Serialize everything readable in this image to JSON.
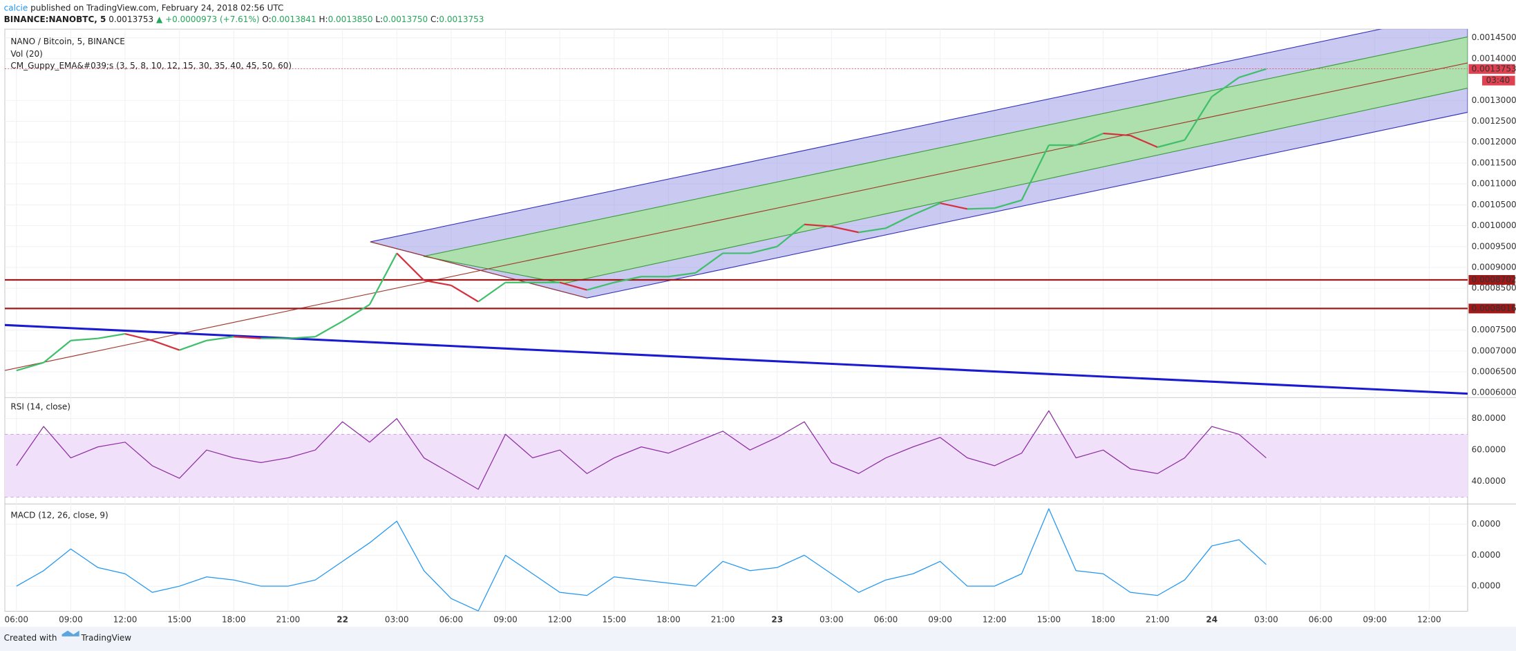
{
  "header": {
    "author": "calcie",
    "published": "published on TradingView.com, February 24, 2018 02:56 UTC",
    "symbol": "BINANCE:NANOBTC, 5",
    "last": "0.0013753",
    "change": "▲ +0.0000973 (+7.61%)",
    "ohlc": [
      {
        "label": "O:",
        "value": "0.0013841"
      },
      {
        "label": "H:",
        "value": "0.0013850"
      },
      {
        "label": "L:",
        "value": "0.0013750"
      },
      {
        "label": "C:",
        "value": "0.0013753"
      }
    ]
  },
  "main_pane": {
    "title": "NANO / Bitcoin, 5, BINANCE",
    "volume_label": "Vol (20)",
    "indicator_label": "CM_Guppy_EMA&#039;s (3, 5, 8, 10, 12, 15, 30, 35, 40, 45, 50, 60)",
    "ylim": [
      0.0005907,
      0.0014708
    ],
    "yticks": [
      {
        "value": 0.00145,
        "label": "0.0014500"
      },
      {
        "value": 0.0014,
        "label": "0.0014000"
      },
      {
        "value": 0.0013,
        "label": "0.0013000"
      },
      {
        "value": 0.00125,
        "label": "0.0012500"
      },
      {
        "value": 0.0012,
        "label": "0.0012000"
      },
      {
        "value": 0.00115,
        "label": "0.0011500"
      },
      {
        "value": 0.0011,
        "label": "0.0011000"
      },
      {
        "value": 0.00105,
        "label": "0.0010500"
      },
      {
        "value": 0.001,
        "label": "0.0010000"
      },
      {
        "value": 0.00095,
        "label": "0.0009500"
      },
      {
        "value": 0.0009,
        "label": "0.0009000"
      },
      {
        "value": 0.00085,
        "label": "0.0008500"
      },
      {
        "value": 0.00075,
        "label": "0.0007500"
      },
      {
        "value": 0.0007,
        "label": "0.0007000"
      },
      {
        "value": 0.00065,
        "label": "0.0006500"
      },
      {
        "value": 0.0006,
        "label": "0.0006000"
      }
    ],
    "last_price": {
      "value": 0.0013753,
      "label": "0.0013753"
    },
    "countdown": "03:40",
    "levels": [
      {
        "value": 0.0008702,
        "label": "0.0008702"
      },
      {
        "value": 0.0008016,
        "label": "0.0008016"
      }
    ],
    "close": [
      0.000653,
      0.000672,
      0.000725,
      0.00073,
      0.000741,
      0.000725,
      0.000702,
      0.000725,
      0.000734,
      0.00073,
      0.00073,
      0.000734,
      0.000771,
      0.000811,
      0.000934,
      0.000869,
      0.000857,
      0.000818,
      0.000864,
      0.000864,
      0.000864,
      0.000846,
      0.000864,
      0.000878,
      0.000878,
      0.000887,
      0.000934,
      0.000934,
      0.00095,
      0.001003,
      0.000998,
      0.000984,
      0.000994,
      0.001026,
      0.001054,
      0.00104,
      0.001042,
      0.001061,
      0.001193,
      0.001193,
      0.001221,
      0.001216,
      0.001188,
      0.001205,
      0.001309,
      0.001355,
      0.0013753
    ]
  },
  "rsi_pane": {
    "title": "RSI (14, close)",
    "ylim": [
      26.3,
      92.8
    ],
    "band": [
      30,
      70
    ],
    "yticks": [
      {
        "value": 80,
        "label": "80.0000"
      },
      {
        "value": 60,
        "label": "60.0000"
      },
      {
        "value": 40,
        "label": "40.0000"
      }
    ],
    "values": [
      50,
      75,
      55,
      62,
      65,
      50,
      42,
      60,
      55,
      52,
      55,
      60,
      78,
      65,
      80,
      55,
      45,
      35,
      70,
      55,
      60,
      45,
      55,
      62,
      58,
      65,
      72,
      60,
      68,
      78,
      52,
      45,
      55,
      62,
      68,
      55,
      50,
      58,
      85,
      55,
      60,
      48,
      45,
      55,
      75,
      70,
      55
    ]
  },
  "macd_pane": {
    "title": "MACD (12, 26, close, 9)",
    "ylim": [
      -8.1e-06,
      2.625e-05
    ],
    "yticks": [
      {
        "value": 2e-05,
        "label": "0.0000"
      },
      {
        "value": 1e-05,
        "label": "0.0000"
      },
      {
        "value": 0,
        "label": "0.0000"
      }
    ],
    "values": [
      0,
      5e-06,
      1.2e-05,
      6e-06,
      4e-06,
      -2e-06,
      0,
      3e-06,
      2e-06,
      0,
      0,
      2e-06,
      8e-06,
      1.4e-05,
      2.1e-05,
      5e-06,
      -4e-06,
      -8e-06,
      1e-05,
      4e-06,
      -2e-06,
      -3e-06,
      3e-06,
      2e-06,
      1e-06,
      0,
      8e-06,
      5e-06,
      6e-06,
      1e-05,
      4e-06,
      -2e-06,
      2e-06,
      4e-06,
      8e-06,
      0,
      0,
      4e-06,
      2.5e-05,
      5e-06,
      4e-06,
      -2e-06,
      -3e-06,
      2e-06,
      1.3e-05,
      1.5e-05,
      7e-06
    ]
  },
  "time_axis": [
    "06:00",
    "09:00",
    "12:00",
    "15:00",
    "18:00",
    "21:00",
    "22",
    "03:00",
    "06:00",
    "09:00",
    "12:00",
    "15:00",
    "18:00",
    "21:00",
    "23",
    "03:00",
    "06:00",
    "09:00",
    "12:00",
    "15:00",
    "18:00",
    "21:00",
    "24",
    "03:00",
    "06:00",
    "09:00",
    "12:00"
  ],
  "footer": {
    "prefix": "Created with",
    "brand": "TradingView"
  }
}
